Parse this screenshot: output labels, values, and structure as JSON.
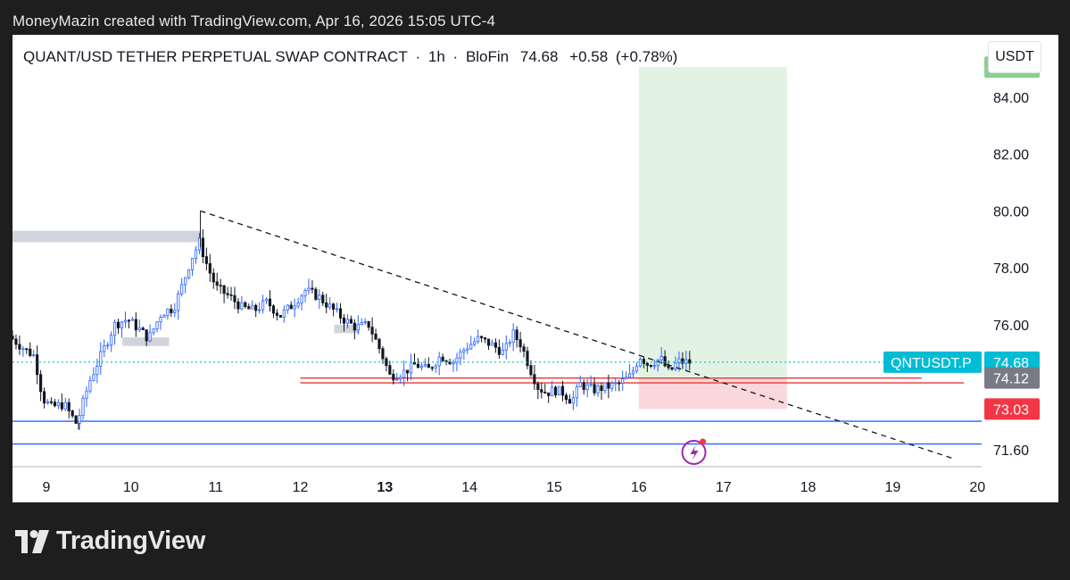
{
  "header": {
    "credit": "MoneyMazin created with TradingView.com, Apr 16, 2026 15:05 UTC-4"
  },
  "symbol_bar": {
    "name": "QUANT/USD TETHER PERPETUAL SWAP CONTRACT",
    "separator": "·",
    "interval": "1h",
    "exchange": "BloFin",
    "last": "74.68",
    "change": "+0.58",
    "change_pct": "(+0.78%)"
  },
  "unit_button": "USDT",
  "footer": {
    "brand": "TradingView"
  },
  "colors": {
    "bull_wick": "#2962ff",
    "bear_candle": "#131722",
    "target_zone": "#e3f3e3",
    "stop_zone": "#f9d7da",
    "price_tag": "#00bcd4",
    "target_tag": "#8bcf91",
    "stop_tag": "#f23645",
    "entry_tag": "#787b86",
    "support_line": "#2962ff",
    "resistance_line": "#e53935"
  },
  "chart_data": {
    "type": "candlestick",
    "x_unit": "day of month (April 2026)",
    "xlim": [
      8.6,
      20.05
    ],
    "ylim": [
      71.0,
      86.2
    ],
    "y_ticks": [
      71.6,
      76.0,
      78.0,
      80.0,
      82.0,
      84.0
    ],
    "x_ticks": [
      {
        "x": 9,
        "label": "9",
        "bold": false
      },
      {
        "x": 10,
        "label": "10",
        "bold": false
      },
      {
        "x": 11,
        "label": "11",
        "bold": false
      },
      {
        "x": 12,
        "label": "12",
        "bold": false
      },
      {
        "x": 13,
        "label": "13",
        "bold": true
      },
      {
        "x": 14,
        "label": "14",
        "bold": false
      },
      {
        "x": 15,
        "label": "15",
        "bold": false
      },
      {
        "x": 16,
        "label": "16",
        "bold": false
      },
      {
        "x": 17,
        "label": "17",
        "bold": false
      },
      {
        "x": 18,
        "label": "18",
        "bold": false
      },
      {
        "x": 19,
        "label": "19",
        "bold": false
      },
      {
        "x": 20,
        "label": "20",
        "bold": false
      }
    ],
    "price_path": [
      [
        8.6,
        75.6
      ],
      [
        8.8,
        75.1
      ],
      [
        8.9,
        74.9
      ],
      [
        9.0,
        73.4
      ],
      [
        9.1,
        73.1
      ],
      [
        9.25,
        73.2
      ],
      [
        9.4,
        72.5
      ],
      [
        9.55,
        74.0
      ],
      [
        9.7,
        75.0
      ],
      [
        9.85,
        76.0
      ],
      [
        10.0,
        76.2
      ],
      [
        10.15,
        75.8
      ],
      [
        10.25,
        75.5
      ],
      [
        10.4,
        76.4
      ],
      [
        10.55,
        76.6
      ],
      [
        10.65,
        77.4
      ],
      [
        10.75,
        78.3
      ],
      [
        10.85,
        78.9
      ],
      [
        10.95,
        78.0
      ],
      [
        11.05,
        77.3
      ],
      [
        11.2,
        77.0
      ],
      [
        11.35,
        76.6
      ],
      [
        11.5,
        76.5
      ],
      [
        11.65,
        76.8
      ],
      [
        11.8,
        76.3
      ],
      [
        11.95,
        76.7
      ],
      [
        12.1,
        77.2
      ],
      [
        12.25,
        77.0
      ],
      [
        12.4,
        76.6
      ],
      [
        12.55,
        76.2
      ],
      [
        12.7,
        75.9
      ],
      [
        12.85,
        76.0
      ],
      [
        13.0,
        75.0
      ],
      [
        13.1,
        74.2
      ],
      [
        13.25,
        74.3
      ],
      [
        13.4,
        74.6
      ],
      [
        13.55,
        74.4
      ],
      [
        13.7,
        74.9
      ],
      [
        13.85,
        74.7
      ],
      [
        14.0,
        75.2
      ],
      [
        14.15,
        75.5
      ],
      [
        14.3,
        75.3
      ],
      [
        14.45,
        75.0
      ],
      [
        14.55,
        75.7
      ],
      [
        14.65,
        75.3
      ],
      [
        14.75,
        74.5
      ],
      [
        14.85,
        73.8
      ],
      [
        14.95,
        73.6
      ],
      [
        15.05,
        73.7
      ],
      [
        15.15,
        73.6
      ],
      [
        15.25,
        73.3
      ],
      [
        15.35,
        73.9
      ],
      [
        15.5,
        73.7
      ],
      [
        15.65,
        73.8
      ],
      [
        15.8,
        73.9
      ],
      [
        15.95,
        74.2
      ],
      [
        16.05,
        74.9
      ],
      [
        16.15,
        74.6
      ],
      [
        16.3,
        74.8
      ],
      [
        16.4,
        74.3
      ],
      [
        16.5,
        74.7
      ],
      [
        16.6,
        74.68
      ]
    ],
    "swing_high": {
      "x": 10.82,
      "y": 80.0
    },
    "swing_low": {
      "x": 9.38,
      "y": 72.3
    },
    "trendline": {
      "x1": 10.82,
      "y1": 80.0,
      "x2": 19.7,
      "y2": 71.3,
      "style": "dashed"
    },
    "horizontal_lines": [
      {
        "y": 72.6,
        "x_from": 8.6,
        "x_to": 20.05,
        "color": "support_line"
      },
      {
        "y": 71.8,
        "x_from": 8.6,
        "x_to": 20.05,
        "color": "support_line"
      },
      {
        "y": 74.12,
        "x_from": 12.0,
        "x_to": 19.34,
        "color": "resistance_line"
      },
      {
        "y": 73.95,
        "x_from": 12.0,
        "x_to": 19.84,
        "color": "resistance_line"
      }
    ],
    "gray_zones": [
      {
        "x_from": 8.6,
        "x_to": 10.82,
        "y_top": 79.3,
        "y_bottom": 78.9
      },
      {
        "x_from": 9.9,
        "x_to": 10.45,
        "y_top": 75.55,
        "y_bottom": 75.25
      },
      {
        "x_from": 12.4,
        "x_to": 12.7,
        "y_top": 76.0,
        "y_bottom": 75.7
      }
    ],
    "position_tool": {
      "x_from": 16.0,
      "x_to": 17.75,
      "entry": 74.12,
      "target": 85.06,
      "stop": 73.03
    },
    "last_price_line": {
      "y": 74.68,
      "style": "dotted"
    },
    "price_tags": [
      {
        "label": "QNTUSDT.P",
        "value": "74.68",
        "y": 74.68,
        "color": "price_tag"
      },
      {
        "value": "85.06",
        "y": 85.06,
        "color": "target_tag"
      },
      {
        "value": "74.12",
        "y": 74.12,
        "color": "entry_tag"
      },
      {
        "value": "73.03",
        "y": 73.03,
        "color": "stop_tag"
      }
    ]
  }
}
